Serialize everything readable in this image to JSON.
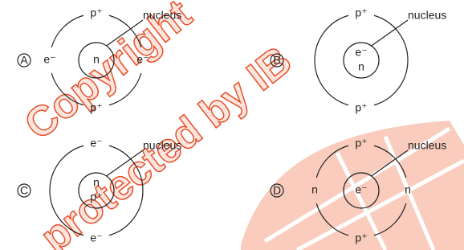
{
  "diagrams": [
    {
      "label": "A",
      "nucleus_label": "nucleus",
      "outer": {
        "top": "p⁺",
        "bottom": "p⁺",
        "left": "e⁻",
        "right": "e⁻"
      },
      "inner": [
        "n"
      ]
    },
    {
      "label": "B",
      "nucleus_label": "nucleus",
      "outer": {
        "top": "p⁺",
        "bottom": "p⁺"
      },
      "inner": [
        "e⁻",
        "n"
      ]
    },
    {
      "label": "C",
      "nucleus_label": "nucleus",
      "outer": {
        "top": "e⁻",
        "bottom": "e⁻"
      },
      "inner": [
        "n",
        "p⁺"
      ]
    },
    {
      "label": "D",
      "nucleus_label": "nucleus",
      "outer": {
        "top": "p⁺",
        "bottom": "p⁺",
        "left": "n",
        "right": "n"
      },
      "inner": [
        "e⁻"
      ]
    }
  ],
  "watermark": [
    "Copyright",
    "protected by IB"
  ]
}
